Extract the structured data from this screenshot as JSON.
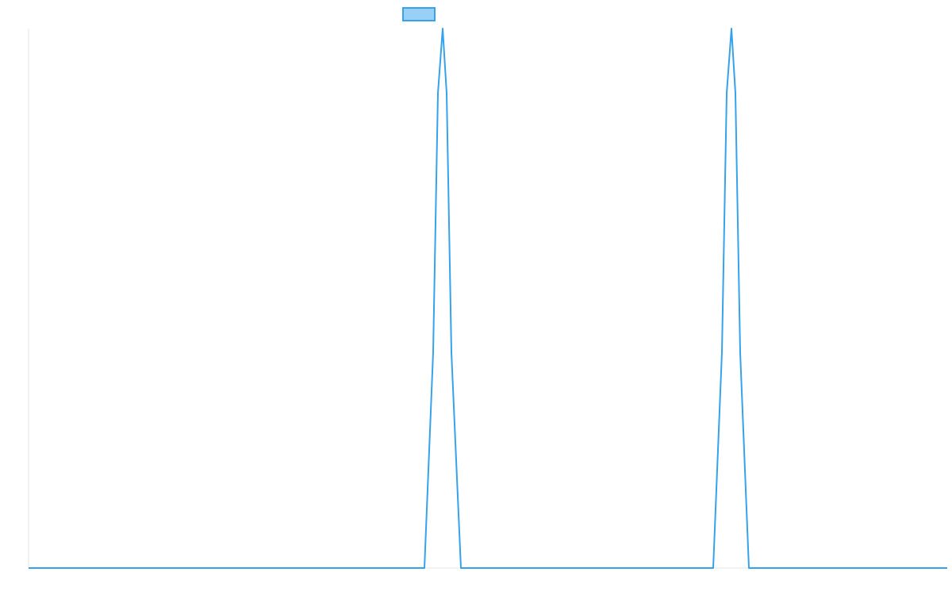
{
  "chart_data": {
    "type": "line",
    "title": "",
    "xlabel": "",
    "ylabel": "",
    "xlim": [
      0,
      1158
    ],
    "ylim": [
      0,
      1
    ],
    "grid": false,
    "legend": {
      "placement": "top-center",
      "show_label": false
    },
    "series": [
      {
        "color": "#36a2eb",
        "fill": "#9ad0f5",
        "x": [
          0,
          499,
          510,
          516,
          522,
          527,
          533,
          545,
          863,
          874,
          880,
          886,
          891,
          897,
          908,
          1158
        ],
        "y": [
          0,
          0,
          0.4,
          0.88,
          1,
          0.88,
          0.4,
          0,
          0,
          0.4,
          0.88,
          1,
          0.88,
          0.4,
          0,
          0
        ]
      }
    ]
  }
}
